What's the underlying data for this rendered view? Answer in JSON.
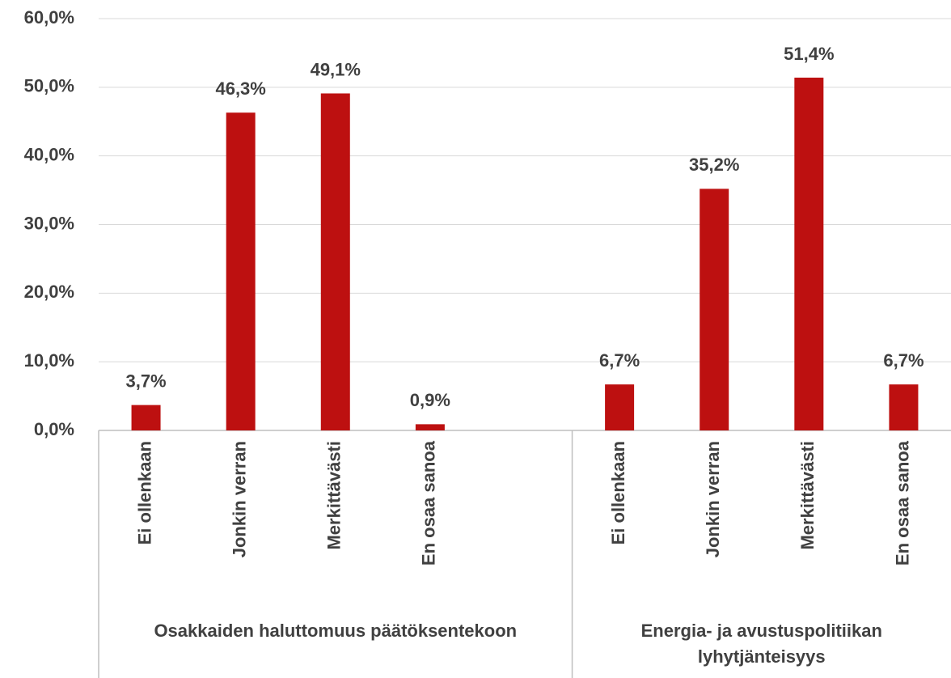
{
  "chart_data": {
    "type": "bar",
    "color": "#bd1010",
    "ylim": [
      0,
      60
    ],
    "yticks": [
      {
        "value": 0,
        "label": "0,0%"
      },
      {
        "value": 10,
        "label": "10,0%"
      },
      {
        "value": 20,
        "label": "20,0%"
      },
      {
        "value": 30,
        "label": "30,0%"
      },
      {
        "value": 40,
        "label": "40,0%"
      },
      {
        "value": 50,
        "label": "50,0%"
      },
      {
        "value": 60,
        "label": "60,0%"
      }
    ],
    "grid": true,
    "groups": [
      {
        "name": "Osakkaiden haluttomuus päätöksentekoon",
        "categories": [
          "Ei ollenkaan",
          "Jonkin verran",
          "Merkittävästi",
          "En osaa sanoa",
          null
        ],
        "values": [
          3.7,
          46.3,
          49.1,
          0.9,
          null
        ],
        "value_labels": [
          "3,7%",
          "46,3%",
          "49,1%",
          "0,9%",
          null
        ]
      },
      {
        "name": "Energia- ja avustuspolitiikan lyhytjänteisyys",
        "categories": [
          "Ei ollenkaan",
          "Jonkin verran",
          "Merkittävästi",
          "En osaa sanoa"
        ],
        "values": [
          6.7,
          35.2,
          51.4,
          6.7
        ],
        "value_labels": [
          "6,7%",
          "35,2%",
          "51,4%",
          "6,7%"
        ]
      }
    ]
  }
}
